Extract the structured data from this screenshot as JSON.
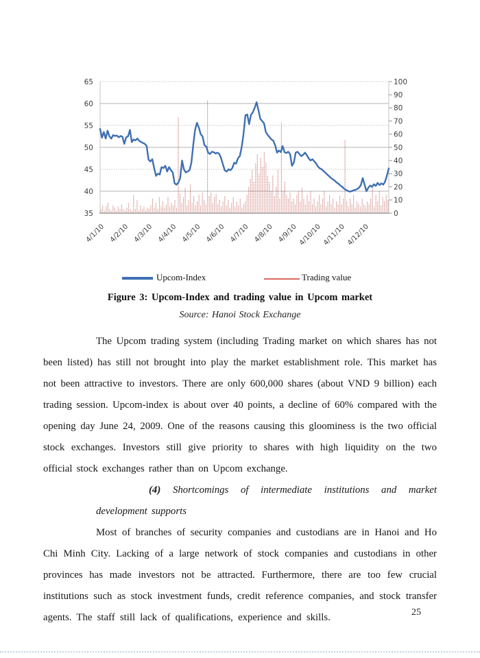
{
  "page": {
    "number": "25"
  },
  "figure": {
    "caption": "Figure 3: Upcom-Index and trading value in Upcom market",
    "source": "Source: Hanoi Stock Exchange",
    "legend": [
      {
        "label": "Upcom-Index",
        "color": "#3E6FB2",
        "swatch": "thick-line"
      },
      {
        "label": "Trading value",
        "color": "#D96A5F",
        "swatch": "thin-line"
      }
    ]
  },
  "chart_data": {
    "type": "line+bar",
    "title": "",
    "xlabel": "",
    "ylabel_left": "",
    "ylabel_right": "",
    "grid": "horizontal",
    "legend_position": "below",
    "x_tick_labels": [
      "4/1/10",
      "4/2/10",
      "4/3/10",
      "4/4/10",
      "4/5/10",
      "4/6/10",
      "4/7/10",
      "4/8/10",
      "4/9/10",
      "4/10/10",
      "4/11/10",
      "4/12/10"
    ],
    "left_axis": {
      "min": 35,
      "max": 65,
      "step": 5,
      "ticks": [
        65,
        60,
        55,
        50,
        45,
        40,
        35
      ]
    },
    "right_axis": {
      "min": 0,
      "max": 100,
      "step": 10,
      "ticks": [
        100,
        90,
        80,
        70,
        60,
        50,
        40,
        30,
        20,
        10,
        0
      ]
    },
    "gridlines": {
      "solid_at_left_values": [
        40,
        50,
        60
      ],
      "dotted_at_left_values": [
        45,
        55
      ]
    },
    "series": [
      {
        "name": "Upcom-Index",
        "type": "line",
        "axis": "left",
        "color": "#3E6FB2",
        "values": [
          54.2,
          52.2,
          53.5,
          52.0,
          53.8,
          52.5,
          52.0,
          52.8,
          52.6,
          52.7,
          52.3,
          52.6,
          52.4,
          50.8,
          52.3,
          52.5,
          54.0,
          51.2,
          51.8,
          51.6,
          52.0,
          51.5,
          51.2,
          51.0,
          50.8,
          50.3,
          47.2,
          46.8,
          47.3,
          45.3,
          43.5,
          44.0,
          43.8,
          45.5,
          45.3,
          45.8,
          44.5,
          45.5,
          44.8,
          44.3,
          41.8,
          41.5,
          42.0,
          43.0,
          47.0,
          45.0,
          44.3,
          44.5,
          44.8,
          46.5,
          50.5,
          54.0,
          55.6,
          54.5,
          53.0,
          52.5,
          50.5,
          50.2,
          48.8,
          48.5,
          49.0,
          48.9,
          48.6,
          48.8,
          48.5,
          47.5,
          46.0,
          44.7,
          44.5,
          45.0,
          44.8,
          45.3,
          46.5,
          46.3,
          47.5,
          48.0,
          50.0,
          53.0,
          57.3,
          57.5,
          55.3,
          57.4,
          58.0,
          59.0,
          60.3,
          58.5,
          56.5,
          56.0,
          55.5,
          53.5,
          52.8,
          52.3,
          51.8,
          51.5,
          50.5,
          48.8,
          49.3,
          48.9,
          50.3,
          48.9,
          48.7,
          49.0,
          48.5,
          45.8,
          46.5,
          48.8,
          49.0,
          48.5,
          48.0,
          48.3,
          48.8,
          48.2,
          47.5,
          47.0,
          47.3,
          46.8,
          46.3,
          45.6,
          45.2,
          45.0,
          44.6,
          44.2,
          43.8,
          43.4,
          43.0,
          42.7,
          42.4,
          42.0,
          41.7,
          41.3,
          41.0,
          40.6,
          40.3,
          40.1,
          39.9,
          40.0,
          40.2,
          40.3,
          40.5,
          40.8,
          41.4,
          43.0,
          41.5,
          40.0,
          40.8,
          41.3,
          41.0,
          41.6,
          41.2,
          41.9,
          41.4,
          41.8,
          41.5,
          42.2,
          43.6,
          45.2
        ]
      },
      {
        "name": "Trading value",
        "type": "bar",
        "axis": "right",
        "color": "#C9736E",
        "values": [
          3,
          6,
          2,
          5,
          8,
          3,
          2,
          6,
          4,
          2,
          5,
          3,
          7,
          3,
          2,
          4,
          8,
          3,
          2,
          14,
          3,
          10,
          2,
          6,
          3,
          5,
          2,
          4,
          3,
          6,
          11,
          4,
          8,
          3,
          12,
          5,
          9,
          4,
          7,
          12,
          5,
          8,
          6,
          10,
          4,
          73,
          15,
          8,
          12,
          19,
          6,
          10,
          22,
          8,
          13,
          6,
          9,
          14,
          6,
          16,
          10,
          7,
          86,
          13,
          16,
          8,
          12,
          15,
          7,
          10,
          5,
          9,
          13,
          6,
          10,
          4,
          8,
          12,
          5,
          9,
          6,
          11,
          4,
          7,
          9,
          14,
          20,
          26,
          33,
          24,
          38,
          45,
          30,
          42,
          35,
          47,
          39,
          28,
          24,
          17,
          29,
          13,
          20,
          33,
          11,
          69,
          17,
          24,
          14,
          11,
          16,
          9,
          11,
          7,
          14,
          17,
          9,
          19,
          11,
          7,
          14,
          9,
          17,
          7,
          11,
          5,
          9,
          14,
          7,
          11,
          17,
          5,
          9,
          14,
          7,
          11,
          4,
          9,
          7,
          13,
          7,
          11,
          56,
          9,
          5,
          11,
          7,
          14,
          4,
          9,
          7,
          5,
          11,
          7,
          5,
          9,
          7,
          11,
          22,
          5,
          14,
          9,
          17,
          6,
          12,
          9,
          14,
          10
        ]
      }
    ]
  },
  "body": {
    "paragraph1": "The Upcom trading system (including Trading market on which shares has not been listed) has still not brought into play the market establishment role. This market has not been attractive to investors. There are only 600,000 shares (about VND 9 billion) each trading session. Upcom-index is about over 40 points, a decline of 60% compared with the opening day June 24, 2009. One of the reasons causing this gloominess is the two official stock exchanges. Investors still give priority to shares with high liquidity on the two official stock exchanges rather than on Upcom exchange.",
    "heading_prefix": "(4)",
    "heading_text": "Shortcomings of intermediate institutions and market development supports",
    "paragraph2": "Most of branches of security companies and custodians are in Hanoi and Ho Chi Minh City. Lacking of a large network of stock companies and custodians in other provinces has made investors not be attracted. Furthermore, there are too few crucial institutions such as stock investment funds, credit reference companies, and stock transfer agents. The staff still lack of qualifications, experience and skills."
  }
}
